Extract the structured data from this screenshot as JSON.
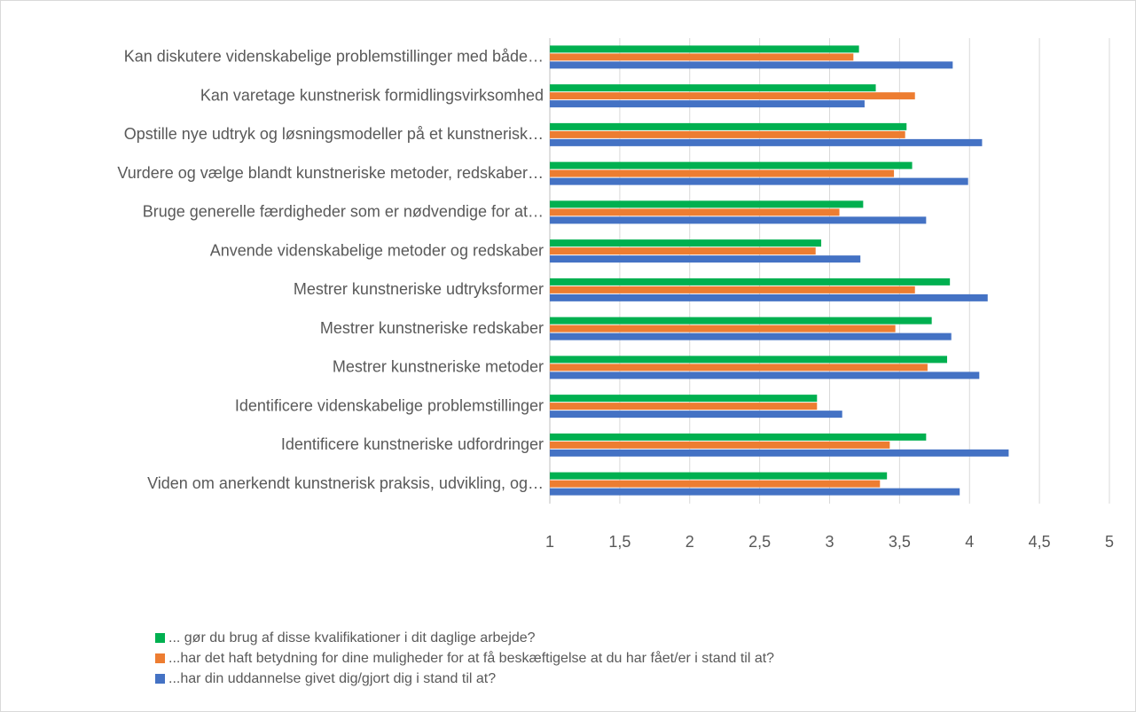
{
  "chart_data": {
    "type": "hbar",
    "categories": [
      "Kan diskutere videnskabelige problemstillinger med både…",
      "Kan varetage kunstnerisk formidlingsvirksomhed",
      "Opstille nye udtryk og løsningsmodeller på et kunstnerisk…",
      "Vurdere og vælge blandt kunstneriske metoder, redskaber…",
      "Bruge generelle færdigheder som er nødvendige for at…",
      "Anvende videnskabelige metoder og redskaber",
      "Mestrer kunstneriske udtryksformer",
      "Mestrer kunstneriske redskaber",
      "Mestrer kunstneriske metoder",
      "Identificere videnskabelige problemstillinger",
      "Identificere kunstneriske udfordringer",
      "Viden om anerkendt kunstnerisk praksis, udvikling, og…"
    ],
    "series": [
      {
        "name": "... gør du brug af disse kvalifikationer i dit daglige arbejde?",
        "color": "#00b050",
        "values": [
          3.21,
          3.33,
          3.55,
          3.59,
          3.24,
          2.94,
          3.86,
          3.73,
          3.84,
          2.91,
          3.69,
          3.41
        ]
      },
      {
        "name": "...har det haft betydning for dine muligheder for at få beskæftigelse at du har fået/er i stand til at?",
        "color": "#ed7d31",
        "values": [
          3.17,
          3.61,
          3.54,
          3.46,
          3.07,
          2.9,
          3.61,
          3.47,
          3.7,
          2.91,
          3.43,
          3.36
        ]
      },
      {
        "name": "...har din uddannelse givet dig/gjort dig i stand til at?",
        "color": "#4472c4",
        "values": [
          3.88,
          3.25,
          4.09,
          3.99,
          3.69,
          3.22,
          4.13,
          3.87,
          4.07,
          3.09,
          4.28,
          3.93
        ]
      }
    ],
    "xlim": [
      1,
      5
    ],
    "xticks": [
      1,
      {
        "value": 1.5,
        "label": "1,5"
      },
      2,
      {
        "value": 2.5,
        "label": "2,5"
      },
      3,
      {
        "value": 3.5,
        "label": "3,5"
      },
      4,
      {
        "value": 4.5,
        "label": "4,5"
      },
      5
    ],
    "grid": true
  }
}
